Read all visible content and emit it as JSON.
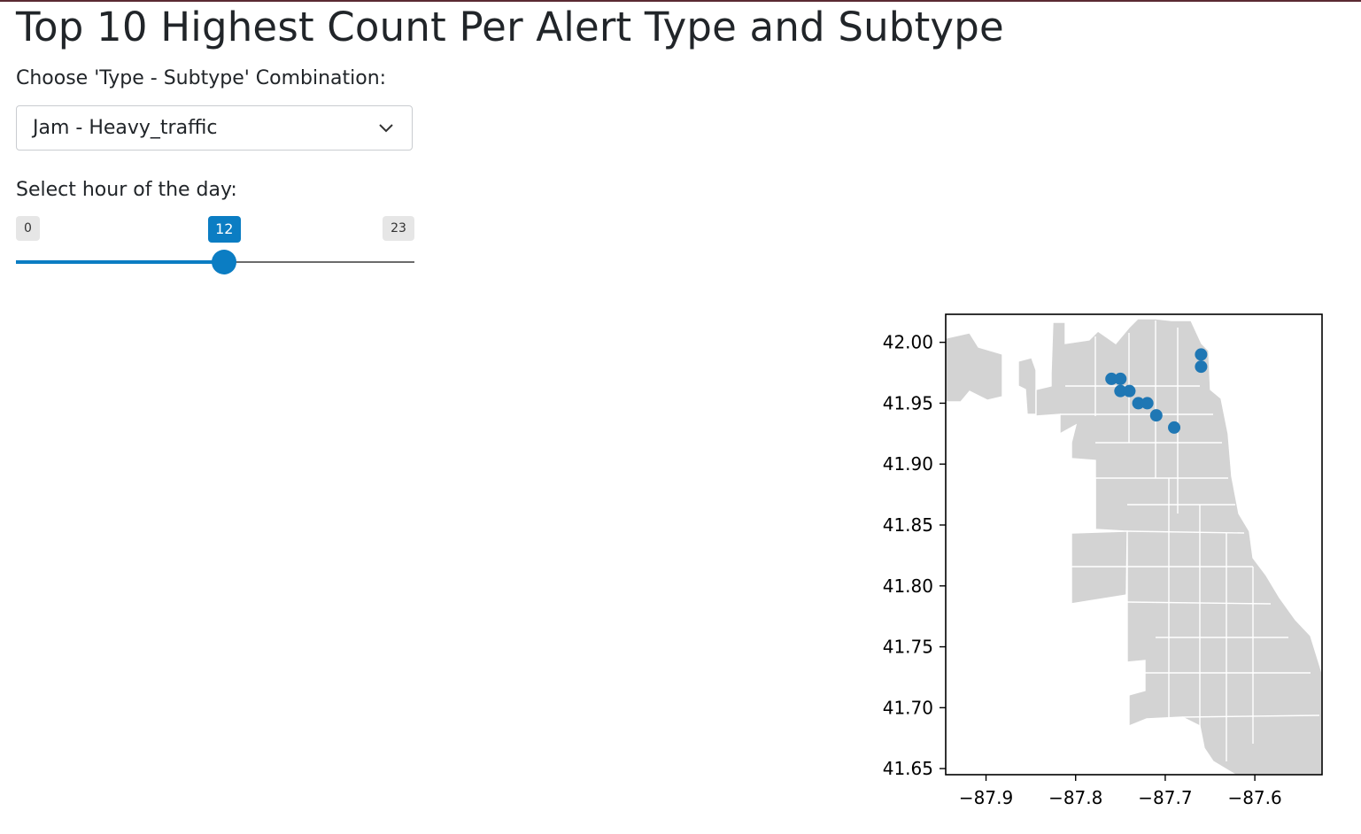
{
  "page": {
    "title": "Top 10 Highest Count Per Alert Type and Subtype"
  },
  "combination_select": {
    "label": "Choose 'Type - Subtype' Combination:",
    "selected": "Jam - Heavy_traffic",
    "icon": "chevron-down-icon"
  },
  "hour_slider": {
    "label": "Select hour of the day:",
    "min": 0,
    "max": 23,
    "value": 12,
    "accent_color": "#0b7dc3"
  },
  "chart_data": {
    "type": "scatter",
    "title": "",
    "xlabel": "",
    "ylabel": "",
    "xlim": [
      -87.945,
      -87.525
    ],
    "ylim": [
      41.645,
      42.023
    ],
    "x_ticks": [
      -87.9,
      -87.8,
      -87.7,
      -87.6
    ],
    "x_tick_labels": [
      "−87.9",
      "−87.8",
      "−87.7",
      "−87.6"
    ],
    "y_ticks": [
      41.65,
      41.7,
      41.75,
      41.8,
      41.85,
      41.9,
      41.95,
      42.0
    ],
    "y_tick_labels": [
      "41.65",
      "41.70",
      "41.75",
      "41.80",
      "41.85",
      "41.90",
      "41.95",
      "42.00"
    ],
    "grid": false,
    "basemap": "Chicago neighborhood boundaries (light gray)",
    "basemap_color": "#d3d3d3",
    "point_color": "#1f77b4",
    "points": [
      {
        "x": -87.66,
        "y": 41.99
      },
      {
        "x": -87.66,
        "y": 41.98
      },
      {
        "x": -87.76,
        "y": 41.97
      },
      {
        "x": -87.75,
        "y": 41.97
      },
      {
        "x": -87.75,
        "y": 41.96
      },
      {
        "x": -87.74,
        "y": 41.96
      },
      {
        "x": -87.73,
        "y": 41.95
      },
      {
        "x": -87.72,
        "y": 41.95
      },
      {
        "x": -87.71,
        "y": 41.94
      },
      {
        "x": -87.69,
        "y": 41.93
      }
    ]
  }
}
